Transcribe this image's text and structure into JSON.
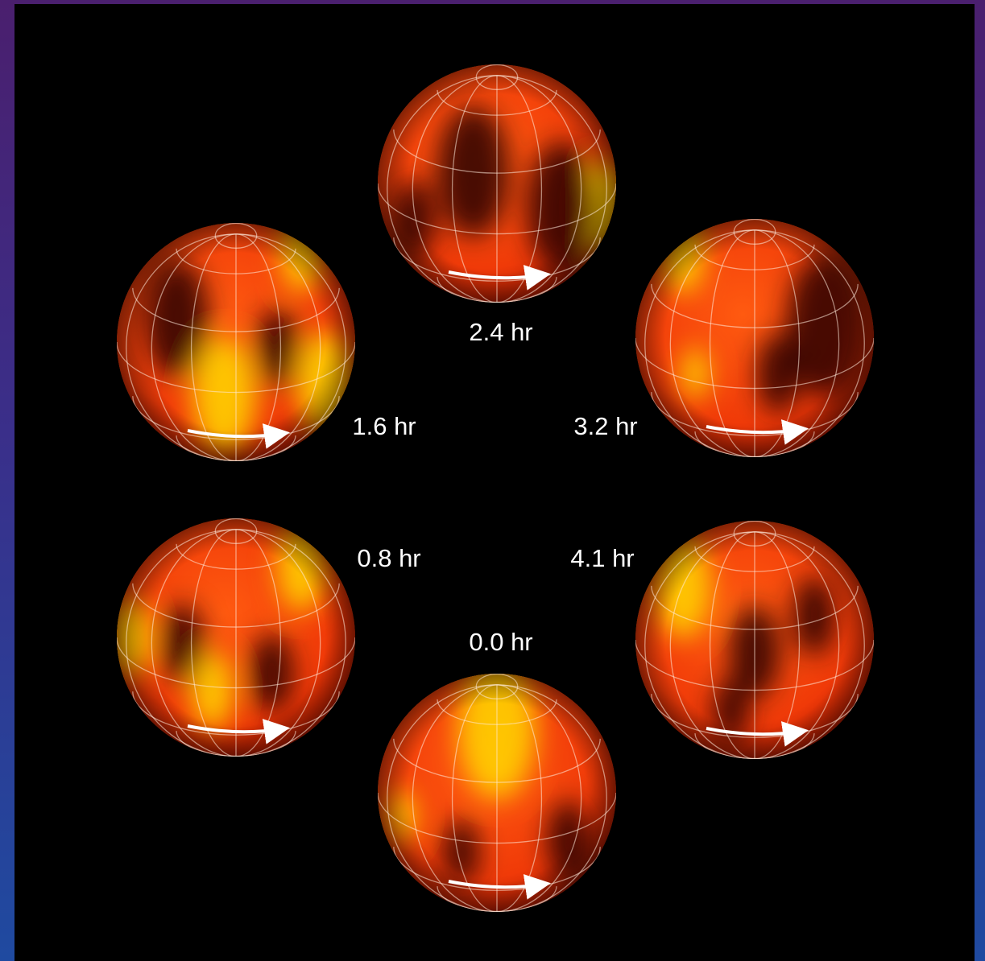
{
  "panels": [
    {
      "label": "2.4 hr"
    },
    {
      "label": "1.6 hr"
    },
    {
      "label": "3.2 hr"
    },
    {
      "label": "0.8 hr"
    },
    {
      "label": "4.1 hr"
    },
    {
      "label": "0.0 hr"
    }
  ]
}
